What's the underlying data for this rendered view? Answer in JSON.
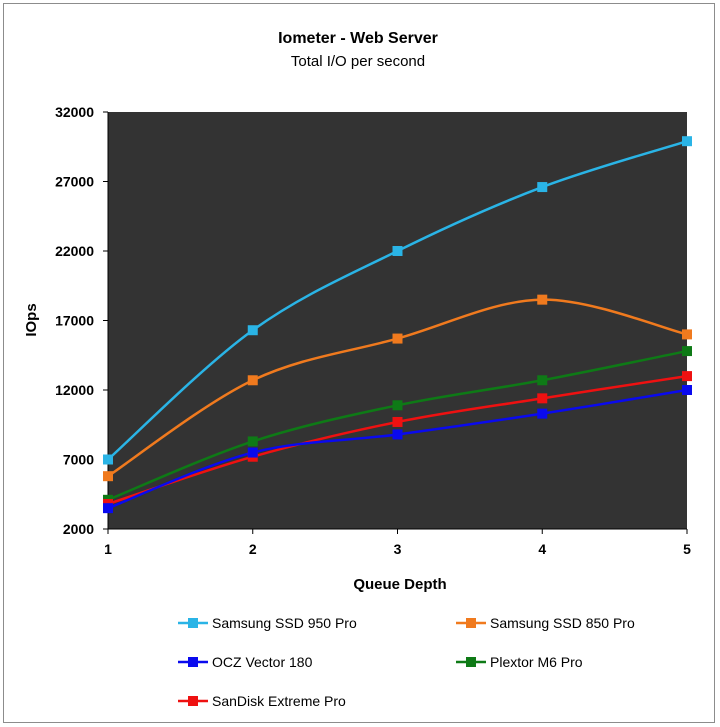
{
  "chart_data": {
    "type": "line",
    "title": "Iometer - Web Server",
    "subtitle": "Total I/O per second",
    "xlabel": "Queue Depth",
    "ylabel": "IOps",
    "categories": [
      "1",
      "2",
      "3",
      "4",
      "5"
    ],
    "ylim": [
      2000,
      32000
    ],
    "yticks": [
      "32000",
      "27000",
      "22000",
      "17000",
      "12000",
      "7000",
      "2000"
    ],
    "plot_background": "#333333",
    "grid": false,
    "legend_position": "bottom",
    "series": [
      {
        "name": "Samsung SSD 950 Pro",
        "color": "#2ab4e6",
        "values": [
          7000,
          16300,
          22000,
          26600,
          29900
        ]
      },
      {
        "name": "Samsung SSD 850 Pro",
        "color": "#f07a1e",
        "values": [
          5800,
          12700,
          15700,
          18500,
          16000
        ]
      },
      {
        "name": "OCZ Vector 180",
        "color": "#0a0aee",
        "values": [
          3500,
          7500,
          8800,
          10300,
          12000
        ]
      },
      {
        "name": "Plextor M6 Pro",
        "color": "#0e7a16",
        "values": [
          4100,
          8300,
          10900,
          12700,
          14800
        ]
      },
      {
        "name": "SanDisk Extreme Pro",
        "color": "#ee1111",
        "values": [
          3800,
          7200,
          9700,
          11400,
          13000
        ]
      }
    ]
  }
}
